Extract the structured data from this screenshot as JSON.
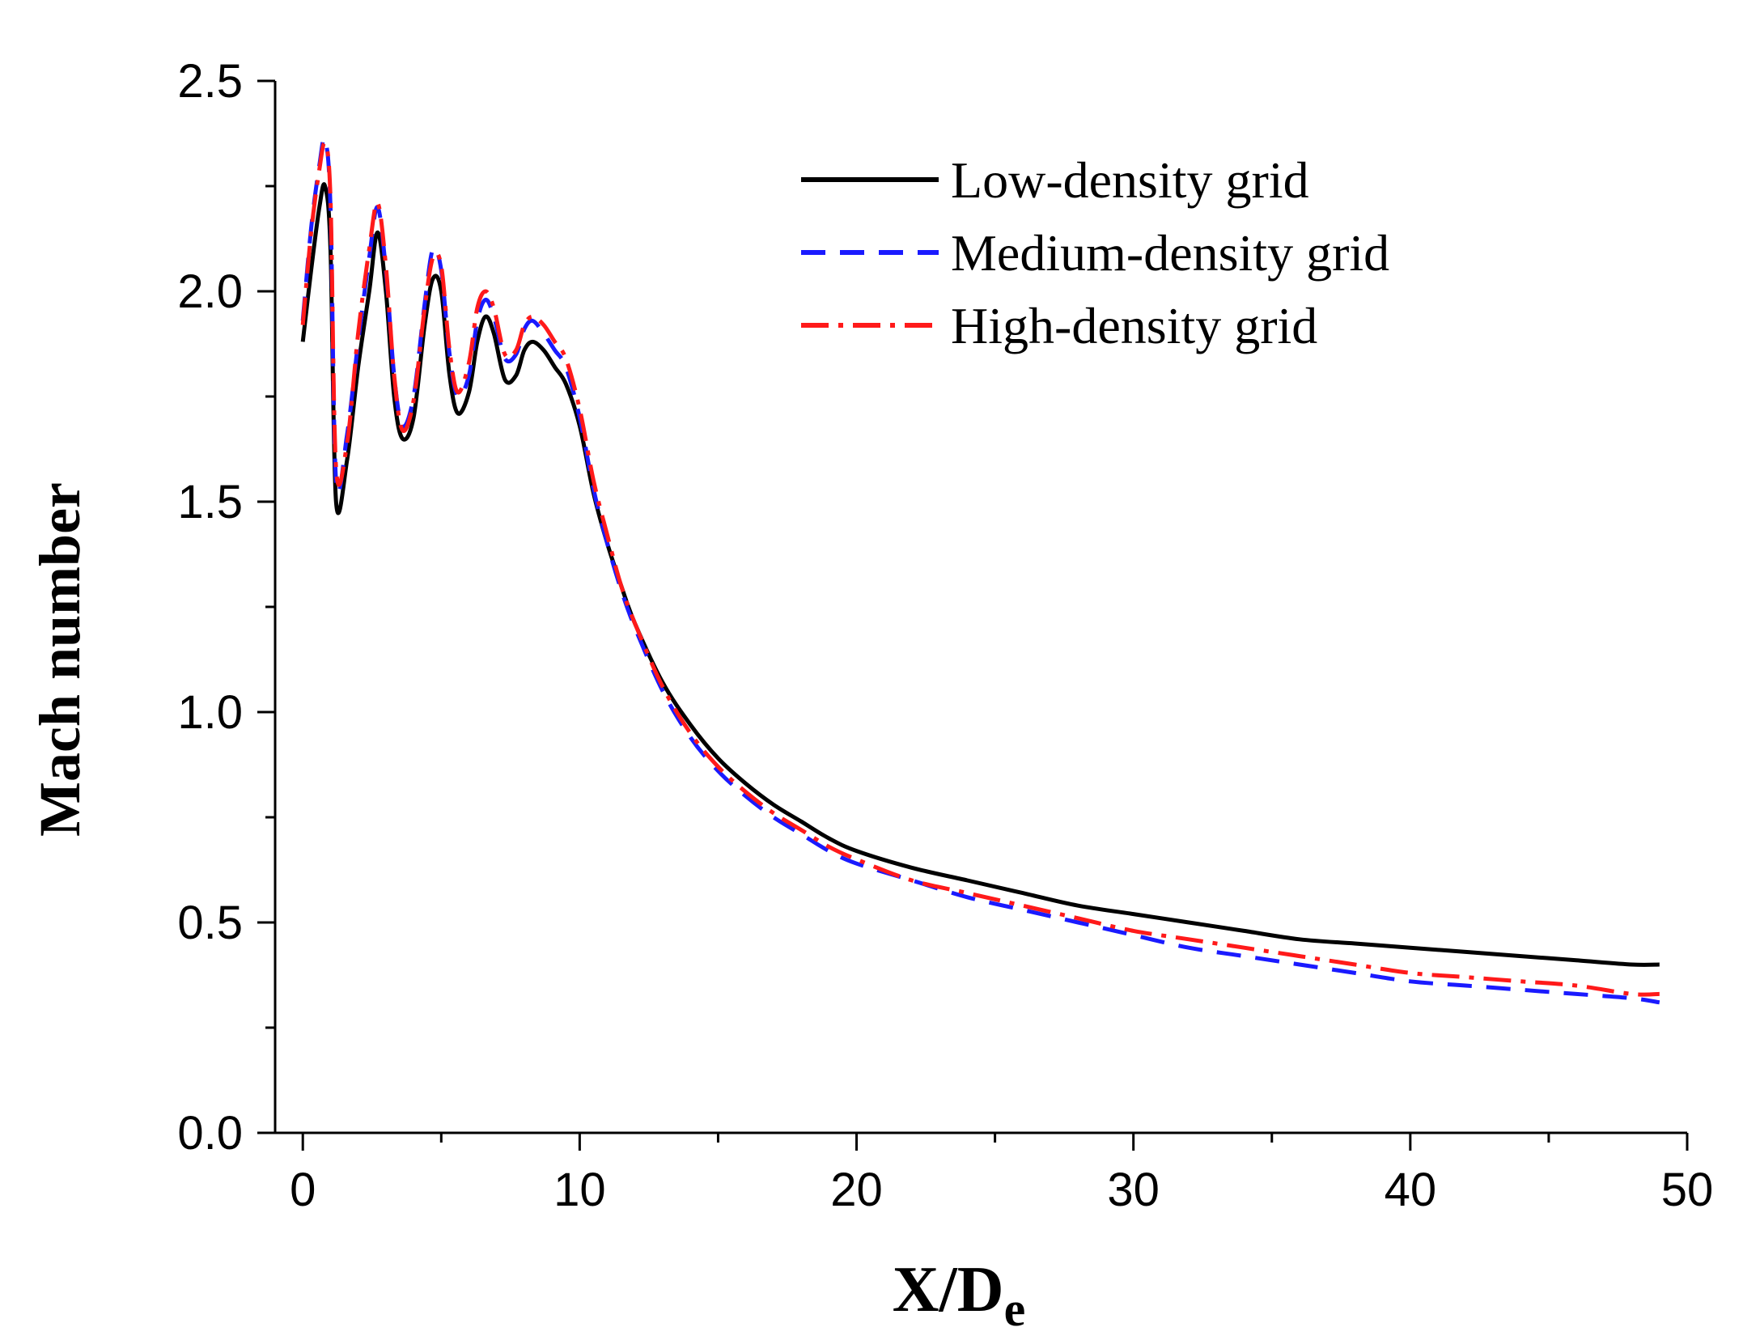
{
  "chart_data": {
    "type": "line",
    "title": "",
    "xlabel": "X/D",
    "xlabel_subscript": "e",
    "ylabel": "Mach number",
    "xlim": [
      -1,
      50
    ],
    "ylim": [
      0,
      2.5
    ],
    "xticks": [
      "0",
      "10",
      "20",
      "30",
      "40",
      "50"
    ],
    "yticks": [
      "0.0",
      "0.5",
      "1.0",
      "1.5",
      "2.0",
      "2.5"
    ],
    "grid": false,
    "legend_position": "top-right",
    "series": [
      {
        "name": "Low-density grid",
        "color": "#000000",
        "style": "solid",
        "x": [
          0,
          0.3,
          0.6,
          0.8,
          1.0,
          1.2,
          1.6,
          2.0,
          2.4,
          2.7,
          3.0,
          3.3,
          3.6,
          4.0,
          4.4,
          4.7,
          5.0,
          5.3,
          5.6,
          6.0,
          6.3,
          6.6,
          6.9,
          7.3,
          7.7,
          8.0,
          8.3,
          8.7,
          9.1,
          9.5,
          10.0,
          10.5,
          11.0,
          11.5,
          12.0,
          13.0,
          14.0,
          15.0,
          16.0,
          17.0,
          18.0,
          19.0,
          20.0,
          22.0,
          24.0,
          26.0,
          28.0,
          30.0,
          32.0,
          34.0,
          36.0,
          38.0,
          40.0,
          42.0,
          44.0,
          46.0,
          48.0,
          49.0
        ],
        "y": [
          1.88,
          2.05,
          2.2,
          2.25,
          2.1,
          1.5,
          1.6,
          1.82,
          2.0,
          2.14,
          2.0,
          1.75,
          1.65,
          1.7,
          1.92,
          2.03,
          2.0,
          1.8,
          1.71,
          1.76,
          1.88,
          1.94,
          1.9,
          1.79,
          1.8,
          1.86,
          1.88,
          1.86,
          1.82,
          1.78,
          1.68,
          1.52,
          1.4,
          1.3,
          1.21,
          1.07,
          0.97,
          0.89,
          0.83,
          0.78,
          0.74,
          0.7,
          0.67,
          0.63,
          0.6,
          0.57,
          0.54,
          0.52,
          0.5,
          0.48,
          0.46,
          0.45,
          0.44,
          0.43,
          0.42,
          0.41,
          0.4,
          0.4
        ]
      },
      {
        "name": "Medium-density grid",
        "color": "#1a1aff",
        "style": "dashed",
        "x": [
          0,
          0.3,
          0.6,
          0.8,
          1.0,
          1.2,
          1.6,
          2.0,
          2.4,
          2.7,
          3.0,
          3.3,
          3.6,
          4.0,
          4.4,
          4.7,
          5.0,
          5.3,
          5.6,
          6.0,
          6.3,
          6.6,
          6.9,
          7.3,
          7.7,
          8.0,
          8.3,
          8.7,
          9.1,
          9.5,
          10.0,
          10.5,
          11.0,
          11.5,
          12.0,
          13.0,
          14.0,
          15.0,
          16.0,
          17.0,
          18.0,
          19.0,
          20.0,
          22.0,
          24.0,
          26.0,
          28.0,
          30.0,
          32.0,
          34.0,
          36.0,
          38.0,
          40.0,
          42.0,
          44.0,
          46.0,
          48.0,
          49.0
        ],
        "y": [
          1.93,
          2.15,
          2.3,
          2.36,
          2.2,
          1.55,
          1.66,
          1.88,
          2.08,
          2.2,
          2.05,
          1.8,
          1.68,
          1.75,
          1.97,
          2.1,
          2.05,
          1.85,
          1.75,
          1.8,
          1.93,
          1.98,
          1.94,
          1.84,
          1.85,
          1.91,
          1.93,
          1.9,
          1.86,
          1.82,
          1.7,
          1.53,
          1.4,
          1.29,
          1.2,
          1.05,
          0.94,
          0.86,
          0.8,
          0.75,
          0.71,
          0.67,
          0.64,
          0.6,
          0.56,
          0.53,
          0.5,
          0.47,
          0.44,
          0.42,
          0.4,
          0.38,
          0.36,
          0.35,
          0.34,
          0.33,
          0.32,
          0.31
        ]
      },
      {
        "name": "High-density grid",
        "color": "#ff1a1a",
        "style": "dash-dot",
        "x": [
          0,
          0.3,
          0.6,
          0.8,
          1.0,
          1.2,
          1.6,
          2.0,
          2.4,
          2.7,
          3.0,
          3.3,
          3.6,
          4.0,
          4.4,
          4.7,
          5.0,
          5.3,
          5.6,
          6.0,
          6.3,
          6.6,
          6.9,
          7.3,
          7.7,
          8.0,
          8.3,
          8.7,
          9.1,
          9.5,
          10.0,
          10.5,
          11.0,
          11.5,
          12.0,
          13.0,
          14.0,
          15.0,
          16.0,
          17.0,
          18.0,
          19.0,
          20.0,
          22.0,
          24.0,
          26.0,
          28.0,
          30.0,
          32.0,
          34.0,
          36.0,
          38.0,
          40.0,
          42.0,
          44.0,
          46.0,
          48.0,
          49.0
        ],
        "y": [
          1.92,
          2.14,
          2.29,
          2.35,
          2.22,
          1.58,
          1.64,
          1.9,
          2.1,
          2.21,
          2.06,
          1.8,
          1.67,
          1.74,
          1.96,
          2.08,
          2.06,
          1.86,
          1.76,
          1.83,
          1.96,
          2.0,
          1.96,
          1.85,
          1.86,
          1.92,
          1.94,
          1.92,
          1.88,
          1.84,
          1.72,
          1.55,
          1.42,
          1.3,
          1.21,
          1.06,
          0.95,
          0.87,
          0.81,
          0.76,
          0.72,
          0.68,
          0.65,
          0.6,
          0.57,
          0.54,
          0.51,
          0.48,
          0.46,
          0.44,
          0.42,
          0.4,
          0.38,
          0.37,
          0.36,
          0.35,
          0.33,
          0.33
        ]
      }
    ]
  }
}
